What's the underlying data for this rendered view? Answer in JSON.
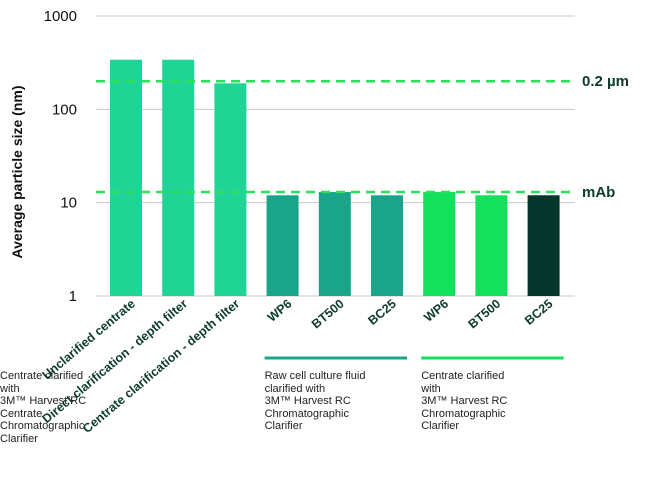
{
  "chart_data": {
    "type": "bar",
    "ylabel": "Average particle size (nm)",
    "yscale": "log",
    "ylim": [
      1,
      1000
    ],
    "yticks": [
      "1",
      "10",
      "100",
      "1000"
    ],
    "grid": true,
    "categories": [
      "Unclarified centrate",
      "Direct clarification - depth filter",
      "Centrate clarification - depth filter",
      "WP6",
      "BT500",
      "BC25",
      "WP6",
      "BT500",
      "BC25"
    ],
    "values": [
      340,
      340,
      190,
      12,
      13,
      12,
      13,
      12,
      12
    ],
    "bar_colors": [
      "#1fd494",
      "#1fd494",
      "#1fd494",
      "#1aa58a",
      "#1aa58a",
      "#1aa58a",
      "#13e05c",
      "#13e05c",
      "#06352b"
    ],
    "reference_lines": [
      {
        "label": "0.2 µm",
        "value": 200,
        "color": "#2ddf5a"
      },
      {
        "label": "mAb",
        "value": 13,
        "color": "#2ddf5a"
      }
    ],
    "groups": [
      {
        "caption": "Raw cell culture fluid\nclarified with\n3M™ Harvest RC\nChromatographic\nClarifier",
        "color": "#1aa58a"
      },
      {
        "caption": "Centrate clarified\nwith\n3M™ Harvest RC\nChromatographic\nClarifier",
        "color": "#13e05c"
      },
      {
        "caption": "Centrate clarified\nwith\n3M™ Harvest RC\nCentrate\nChromatographic\nClarifier",
        "color": "#06352b"
      }
    ]
  }
}
